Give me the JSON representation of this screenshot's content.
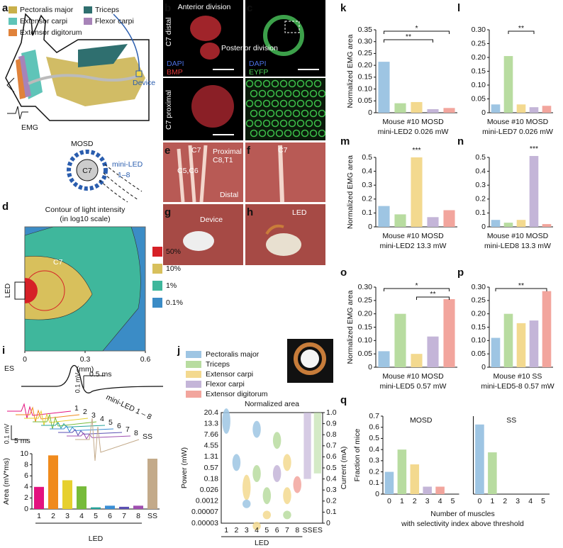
{
  "panel_letters": [
    "a",
    "b",
    "c",
    "d",
    "e",
    "f",
    "g",
    "h",
    "i",
    "j",
    "k",
    "l",
    "m",
    "n",
    "o",
    "p",
    "q"
  ],
  "panel_a": {
    "legend": [
      {
        "name": "Pectoralis major",
        "color": "#c9b04a"
      },
      {
        "name": "Triceps",
        "color": "#2f6f6f"
      },
      {
        "name": "Extensor carpi",
        "color": "#5fc4b8"
      },
      {
        "name": "Flexor carpi",
        "color": "#a783b8"
      },
      {
        "name": "Extensor digitorum",
        "color": "#e0823a"
      }
    ],
    "device": "Device",
    "emg": "EMG",
    "mosd": "MOSD",
    "mini_led": "mini-LED",
    "mini_led_range": "1–8",
    "c7": "C7"
  },
  "micrographs": {
    "b_top": {
      "side": "C7 distal",
      "anterior": "Anterior division",
      "posterior": "Posterior division",
      "stain1": "DAPI",
      "stain2": "BMP"
    },
    "c_top": {
      "stain1": "DAPI",
      "stain2": "EYFP"
    },
    "b_bottom": {
      "side": "C7 proximal"
    },
    "e": {
      "c56": "C5,C6",
      "c7": "C7",
      "proximal": "Proximal",
      "c8t1": "C8,T1",
      "distal": "Distal"
    },
    "f": {
      "c7": "C7"
    },
    "g": {
      "device": "Device"
    },
    "h": {
      "led": "LED"
    }
  },
  "panel_i": {
    "es": "ES",
    "scale_v": "0.1 mV",
    "scale_t": "0.5 ms",
    "trace_labels": [
      "1",
      "2",
      "3",
      "4",
      "5",
      "6",
      "7",
      "8",
      "SS"
    ],
    "mini_led": "mini-LED 1 – 8",
    "scale_v2": "0.1 mV",
    "scale_t2": "5 ms"
  },
  "chart_data": [
    {
      "type": "contour",
      "title": [
        "Contour of light intensity",
        "(in log10 scale)"
      ],
      "levels": [
        {
          "label": "50%",
          "color": "#d62027"
        },
        {
          "label": "10%",
          "color": "#d8c05c"
        },
        {
          "label": "1%",
          "color": "#3fb79c"
        },
        {
          "label": "0.1%",
          "color": "#3b8cc6"
        }
      ],
      "xlim": [
        0,
        0.6
      ],
      "xticks": [
        0,
        0.3,
        0.6
      ],
      "xlabel": "(mm)",
      "target": "C7",
      "source": "LED"
    },
    {
      "type": "bar",
      "ylabel": "Area (mV*ms)",
      "xlabel": "LED",
      "categories": [
        "1",
        "2",
        "3",
        "4",
        "5",
        "6",
        "7",
        "8",
        "SS"
      ],
      "values": [
        4.0,
        9.7,
        5.2,
        4.1,
        0.3,
        0.6,
        0.4,
        0.6,
        9.1
      ],
      "colors": [
        "#e3127f",
        "#f08a1c",
        "#e6d02e",
        "#77bb3a",
        "#25a39a",
        "#3a8fd6",
        "#5a4fb3",
        "#a04fb0",
        "#c3aa8a"
      ],
      "ylim": [
        0,
        10
      ],
      "yticks": [
        0,
        2,
        4,
        6,
        8,
        10
      ]
    },
    {
      "type": "heatmap",
      "title": "Normalized area",
      "ylabel": "Power (mW)",
      "y_categories": [
        "20.4",
        "13.3",
        "7.66",
        "4.55",
        "1.31",
        "0.57",
        "0.18",
        "0.026",
        "0.0012",
        "0.00007",
        "0.00003"
      ],
      "y2label": "Current (mA)",
      "y2lim": [
        0,
        1
      ],
      "y2ticks": [
        0,
        0.1,
        0.2,
        0.3,
        0.4,
        0.5,
        0.6,
        0.7,
        0.8,
        0.9,
        {
          "value": 1,
          "label": "1.0"
        }
      ],
      "x_categories": [
        "1",
        "2",
        "3",
        "4",
        "5",
        "6",
        "7",
        "8",
        "SS",
        "ES"
      ],
      "xlabel": "LED",
      "series": [
        {
          "name": "Pectoralis major",
          "color": "#9ec5e3"
        },
        {
          "name": "Triceps",
          "color": "#b8dca0"
        },
        {
          "name": "Extensor carpi",
          "color": "#f3d98f"
        },
        {
          "name": "Flexor carpi",
          "color": "#c4b5d8"
        },
        {
          "name": "Extensor digitorum",
          "color": "#f2a59d"
        }
      ]
    },
    {
      "type": "bar",
      "ylabel": "Normalized EMG area",
      "xlabel": [
        "Mouse #10 MOSD",
        "mini-LED2 0.026 mW"
      ],
      "values": [
        0.215,
        0.04,
        0.045,
        0.015,
        0.02
      ],
      "colors": [
        "#9ec5e3",
        "#b8dca0",
        "#f3d98f",
        "#c4b5d8",
        "#f2a59d"
      ],
      "ylim": [
        0,
        0.35
      ],
      "yticks": [
        0,
        0.05,
        {
          "value": 0.1,
          "label": "0.10"
        },
        0.15,
        {
          "value": 0.2,
          "label": "0.20"
        },
        0.25,
        {
          "value": 0.3,
          "label": "0.30"
        },
        0.35
      ],
      "annotations": [
        "*",
        "**"
      ]
    },
    {
      "type": "bar",
      "xlabel": [
        "Mouse #10 MOSD",
        "mini-LED7 0.026 mW"
      ],
      "values": [
        0.03,
        0.205,
        0.03,
        0.02,
        0.025
      ],
      "colors": [
        "#9ec5e3",
        "#b8dca0",
        "#f3d98f",
        "#c4b5d8",
        "#f2a59d"
      ],
      "ylim": [
        0,
        0.3
      ],
      "yticks": [
        0,
        0.05,
        {
          "value": 0.1,
          "label": "0.10"
        },
        0.15,
        {
          "value": 0.2,
          "label": "0.20"
        },
        0.25,
        {
          "value": 0.3,
          "label": "0.30"
        }
      ],
      "annotations": [
        "**"
      ]
    },
    {
      "type": "bar",
      "ylabel": "Normalized EMG area",
      "xlabel": [
        "Mouse #10 MOSD",
        "mini-LED2 13.3 mW"
      ],
      "values": [
        0.15,
        0.09,
        0.5,
        0.07,
        0.12
      ],
      "colors": [
        "#9ec5e3",
        "#b8dca0",
        "#f3d98f",
        "#c4b5d8",
        "#f2a59d"
      ],
      "ylim": [
        0,
        0.5
      ],
      "yticks": [
        0,
        0.1,
        0.2,
        0.3,
        0.4,
        0.5
      ],
      "annotations": [
        "***"
      ]
    },
    {
      "type": "bar",
      "xlabel": [
        "Mouse #10 MOSD",
        "mini-LED8 13.3 mW"
      ],
      "values": [
        0.05,
        0.03,
        0.05,
        0.51,
        0.02
      ],
      "colors": [
        "#9ec5e3",
        "#b8dca0",
        "#f3d98f",
        "#c4b5d8",
        "#f2a59d"
      ],
      "ylim": [
        0,
        0.5
      ],
      "yticks": [
        0,
        0.1,
        0.2,
        0.3,
        0.4,
        0.5
      ],
      "annotations": [
        "***"
      ]
    },
    {
      "type": "bar",
      "ylabel": "Normalized EMG area",
      "xlabel": [
        "Mouse #10 MOSD",
        "mini-LED5 0.57 mW"
      ],
      "values": [
        0.06,
        0.2,
        0.05,
        0.115,
        0.255
      ],
      "colors": [
        "#9ec5e3",
        "#b8dca0",
        "#f3d98f",
        "#c4b5d8",
        "#f2a59d"
      ],
      "ylim": [
        0,
        0.3
      ],
      "yticks": [
        0,
        0.05,
        {
          "value": 0.1,
          "label": "0.10"
        },
        0.15,
        {
          "value": 0.2,
          "label": "0.20"
        },
        0.25,
        {
          "value": 0.3,
          "label": "0.30"
        }
      ],
      "annotations": [
        "*",
        "**"
      ]
    },
    {
      "type": "bar",
      "xlabel": [
        "Mouse #10 SS",
        "mini-LED5-8 0.57 mW"
      ],
      "values": [
        0.11,
        0.2,
        0.165,
        0.175,
        0.285
      ],
      "colors": [
        "#9ec5e3",
        "#b8dca0",
        "#f3d98f",
        "#c4b5d8",
        "#f2a59d"
      ],
      "ylim": [
        0,
        0.3
      ],
      "yticks": [
        0,
        0.05,
        {
          "value": 0.1,
          "label": "0.10"
        },
        0.15,
        {
          "value": 0.2,
          "label": "0.20"
        },
        0.25,
        {
          "value": 0.3,
          "label": "0.30"
        }
      ],
      "annotations": [
        "**"
      ]
    },
    {
      "type": "bar",
      "ylabel": "Fraction of mice",
      "xlabel": [
        "Number of muscles",
        "with selectivity index above threshold"
      ],
      "categories": [
        "0",
        "1",
        "2",
        "3",
        "4",
        "5"
      ],
      "series": [
        {
          "name": "MOSD",
          "values": [
            0.2,
            0.4,
            0.267,
            0.067,
            0.067,
            0
          ]
        },
        {
          "name": "SS",
          "values": [
            0.625,
            0.375,
            0,
            0,
            0,
            0
          ]
        }
      ],
      "colors": [
        "#9ec5e3",
        "#b8dca0",
        "#f3d98f",
        "#c4b5d8",
        "#f2a59d",
        "#f2a59d"
      ],
      "ylim": [
        0,
        0.7
      ],
      "yticks": [
        0,
        0.1,
        0.2,
        0.3,
        0.4,
        0.5,
        0.6,
        0.7
      ]
    }
  ]
}
